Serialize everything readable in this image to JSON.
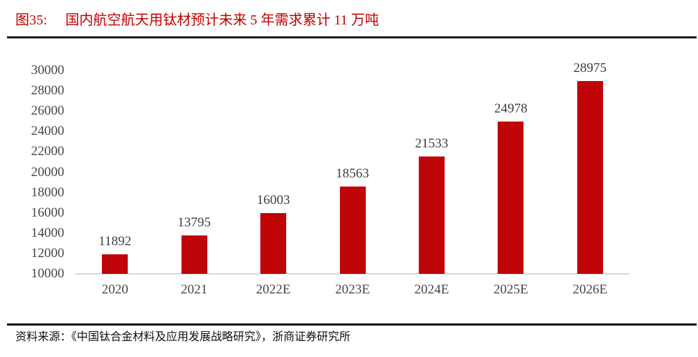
{
  "header": {
    "figure_label": "图35:",
    "figure_title": "国内航空航天用钛材预计未来 5 年需求累计 11 万吨"
  },
  "chart_data": {
    "type": "bar",
    "title": "国内航空航天用钛材预计未来 5 年需求累计 11 万吨",
    "categories": [
      "2020",
      "2021",
      "2022E",
      "2023E",
      "2024E",
      "2025E",
      "2026E"
    ],
    "values": [
      11892,
      13795,
      16003,
      18563,
      21533,
      24978,
      28975
    ],
    "data_labels_shown": true,
    "xlabel": "",
    "ylabel": "",
    "ylim": [
      10000,
      30000
    ],
    "ytick_step": 2000,
    "yticks": [
      10000,
      12000,
      14000,
      16000,
      18000,
      20000,
      22000,
      24000,
      26000,
      28000,
      30000
    ],
    "grid": false,
    "legend": "none",
    "bar_color": "#c00508",
    "axis_line_color": "#d9d9d9",
    "tick_label_color": "#464646",
    "data_label_color": "#3d3d3d"
  },
  "footer": {
    "source": "资料来源：《中国钛合金材料及应用发展战略研究》，浙商证券研究所"
  },
  "colors": {
    "title_red": "#c00000",
    "separator_dark": "#1c1c1c",
    "background": "#ffffff"
  }
}
